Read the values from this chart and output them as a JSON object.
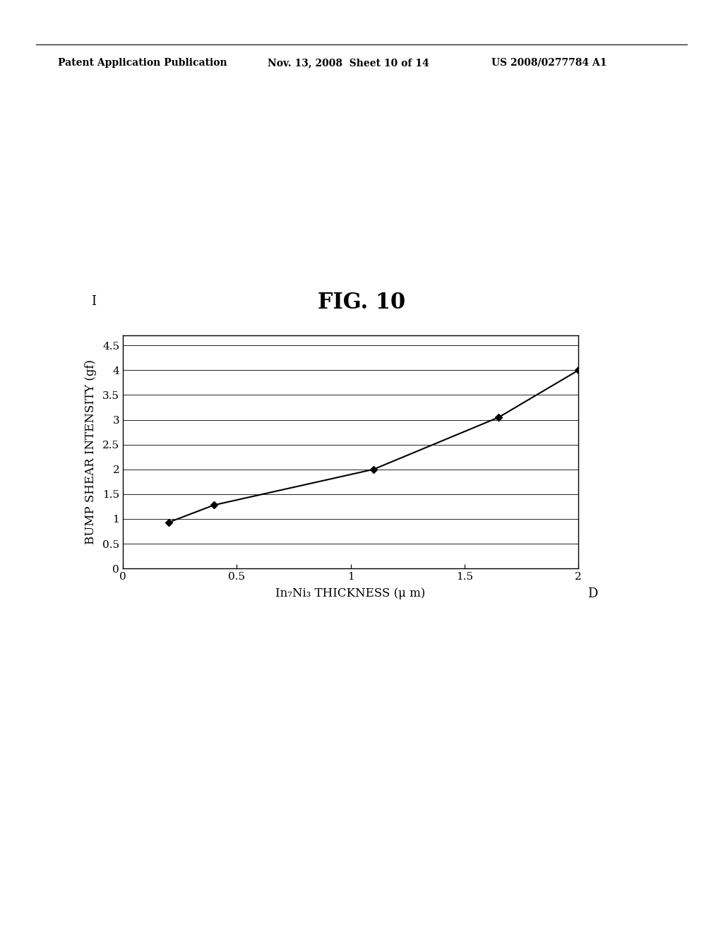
{
  "title": "FIG. 10",
  "header_left": "Patent Application Publication",
  "header_center": "Nov. 13, 2008  Sheet 10 of 14",
  "header_right": "US 2008/0277784 A1",
  "xlabel": "In₇Ni₃ THICKNESS (μ m)",
  "ylabel": "BUMP SHEAR INTENSITY (gf)",
  "label_I": "I",
  "label_D": "D",
  "x_data": [
    0.2,
    0.4,
    1.1,
    1.65,
    2.0
  ],
  "y_data": [
    0.93,
    1.28,
    2.0,
    3.05,
    4.0
  ],
  "xlim": [
    0,
    2
  ],
  "ylim": [
    0,
    4.7
  ],
  "xticks": [
    0,
    0.5,
    1,
    1.5,
    2
  ],
  "yticks": [
    0,
    0.5,
    1,
    1.5,
    2,
    2.5,
    3,
    3.5,
    4,
    4.5
  ],
  "line_color": "#000000",
  "marker_color": "#000000",
  "background_color": "#ffffff",
  "title_fontsize": 22,
  "header_fontsize": 10,
  "axis_label_fontsize": 12,
  "tick_fontsize": 11
}
